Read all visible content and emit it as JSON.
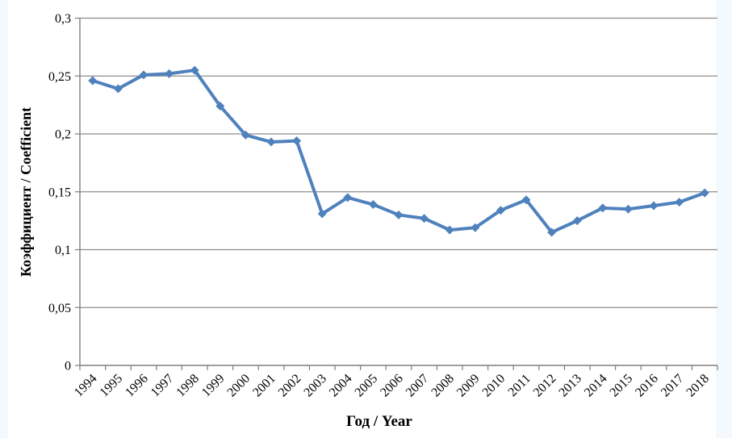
{
  "page": {
    "background_tint": "#f3f9fc",
    "canvas_color": "#ffffff"
  },
  "chart_data": {
    "type": "line",
    "title": "",
    "xlabel": "Год / Year",
    "ylabel": "Коэффициент / Coefficient",
    "categories": [
      "1994",
      "1995",
      "1996",
      "1997",
      "1998",
      "1999",
      "2000",
      "2001",
      "2002",
      "2003",
      "2004",
      "2005",
      "2006",
      "2007",
      "2008",
      "2009",
      "2010",
      "2011",
      "2012",
      "2013",
      "2014",
      "2015",
      "2016",
      "2017",
      "2018"
    ],
    "series": [
      {
        "name": "Коэффициент / Coefficient",
        "color": "#4f81bd",
        "marker": "diamond",
        "values": [
          0.246,
          0.239,
          0.251,
          0.252,
          0.255,
          0.224,
          0.199,
          0.193,
          0.194,
          0.131,
          0.145,
          0.139,
          0.13,
          0.127,
          0.117,
          0.119,
          0.134,
          0.143,
          0.115,
          0.125,
          0.136,
          0.135,
          0.138,
          0.141,
          0.149
        ]
      }
    ],
    "ylim": [
      0,
      0.3
    ],
    "yticks": [
      {
        "value": 0.0,
        "label": "0"
      },
      {
        "value": 0.05,
        "label": "0,05"
      },
      {
        "value": 0.1,
        "label": "0,1"
      },
      {
        "value": 0.15,
        "label": "0,15"
      },
      {
        "value": 0.2,
        "label": "0,2"
      },
      {
        "value": 0.25,
        "label": "0,25"
      },
      {
        "value": 0.3,
        "label": "0,3"
      }
    ],
    "grid": true,
    "legend_position": "none",
    "gridline_color": "#8c8c8c",
    "axis_color": "#7f7f7f"
  }
}
